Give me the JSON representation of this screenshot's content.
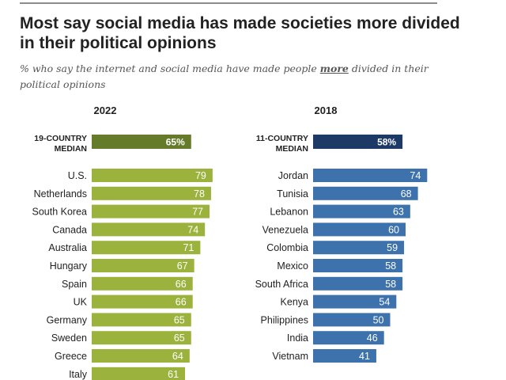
{
  "header": {
    "title": "Most say social media has made societies more divided in their political opinions",
    "subtitle_before": "% who say the internet and social media have made people ",
    "subtitle_emphasis": "more",
    "subtitle_after": " divided in their political opinions"
  },
  "colors": {
    "green_bar": "#9bb23d",
    "green_median": "#667b2a",
    "blue_bar": "#3d72ad",
    "blue_median": "#1d3a66",
    "label_text": "#222222",
    "bar_text": "#ffffff",
    "rule": "#8c8c8c"
  },
  "chart_data": [
    {
      "type": "bar",
      "orientation": "horizontal",
      "title": "2022",
      "median": {
        "label_line1": "19-COUNTRY",
        "label_line2": "MEDIAN",
        "value": 65,
        "value_label": "65%"
      },
      "categories": [
        "U.S.",
        "Netherlands",
        "South Korea",
        "Canada",
        "Australia",
        "Hungary",
        "Spain",
        "UK",
        "Germany",
        "Sweden",
        "Greece",
        "Italy"
      ],
      "values": [
        79,
        78,
        77,
        74,
        71,
        67,
        66,
        66,
        65,
        65,
        64,
        61
      ],
      "unit": "%"
    },
    {
      "type": "bar",
      "orientation": "horizontal",
      "title": "2018",
      "median": {
        "label_line1": "11-COUNTRY",
        "label_line2": "MEDIAN",
        "value": 58,
        "value_label": "58%"
      },
      "categories": [
        "Jordan",
        "Tunisia",
        "Lebanon",
        "Venezuela",
        "Colombia",
        "Mexico",
        "South Africa",
        "Kenya",
        "Philippines",
        "India",
        "Vietnam"
      ],
      "values": [
        74,
        68,
        63,
        60,
        59,
        58,
        58,
        54,
        50,
        46,
        41
      ],
      "unit": "%"
    }
  ]
}
